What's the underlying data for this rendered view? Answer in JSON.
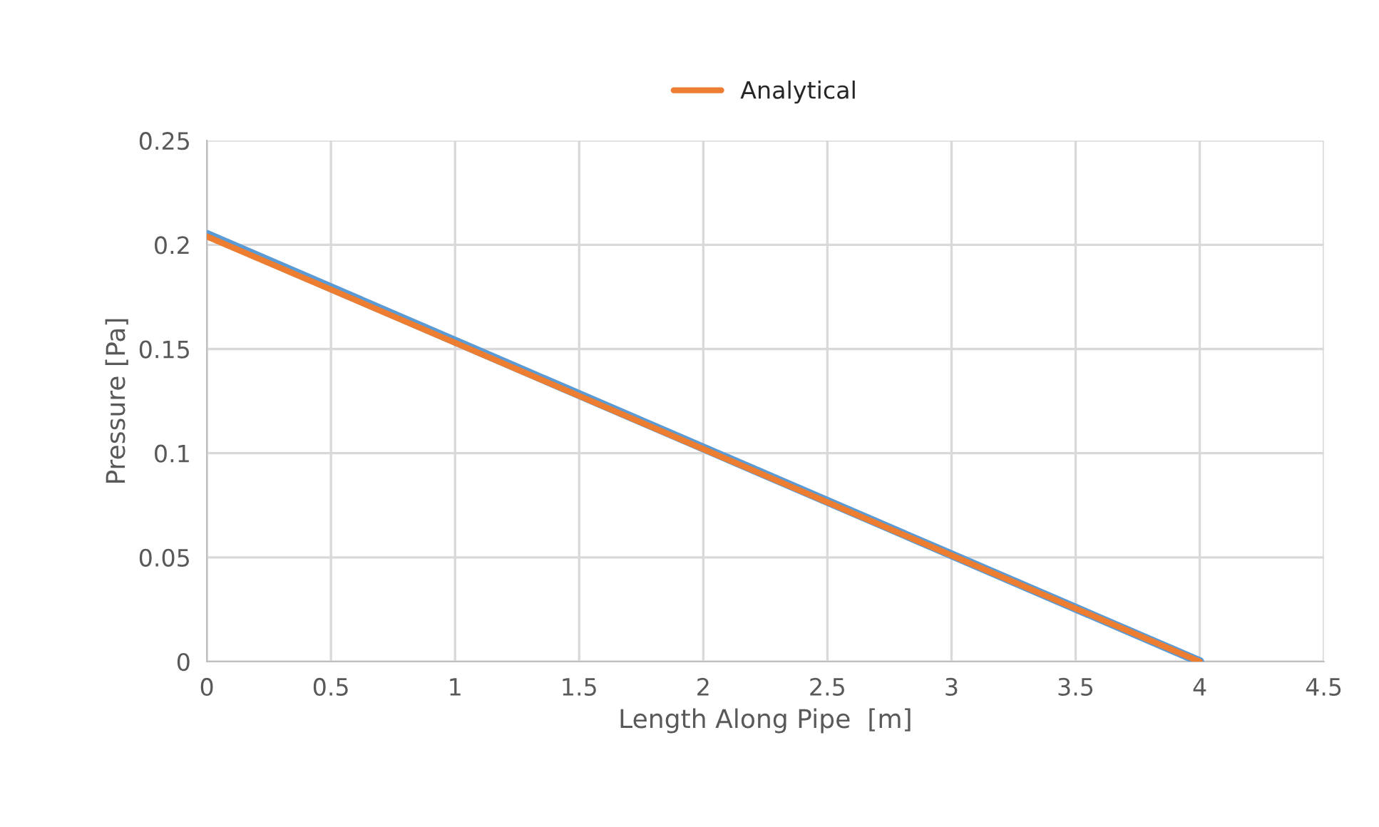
{
  "chart_data": {
    "type": "line",
    "xlabel": "Length Along Pipe  [m]",
    "ylabel": "Pressure [Pa]",
    "x": [
      0,
      4
    ],
    "series": [
      {
        "color": "#5b9bd5",
        "values": [
          0.205,
          0
        ]
      },
      {
        "name": "Analytical",
        "color": "#ed7d31",
        "values": [
          0.204,
          0
        ]
      }
    ],
    "xlim": [
      0,
      4.5
    ],
    "xticks": [
      0,
      0.5,
      1,
      1.5,
      2,
      2.5,
      3,
      3.5,
      4,
      4.5
    ],
    "ylim": [
      0,
      0.25
    ],
    "yticks": [
      0,
      0.05,
      0.1,
      0.15,
      0.2,
      0.25
    ],
    "grid": true,
    "legend": "top",
    "marker": "none",
    "line_style": "solid"
  }
}
